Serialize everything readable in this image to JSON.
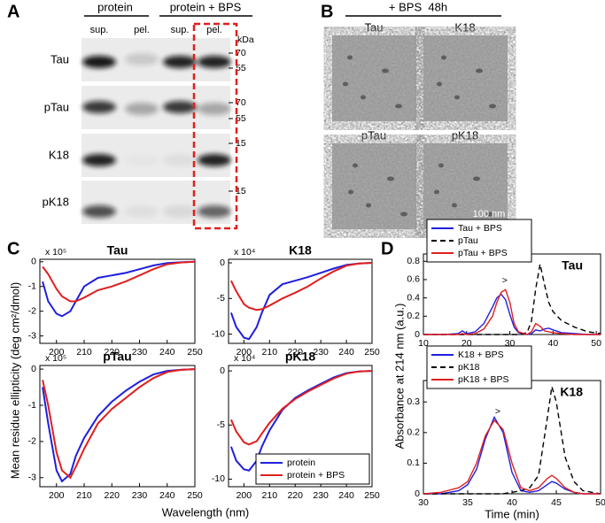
{
  "panel_labels": [
    "A",
    "B",
    "C",
    "D"
  ],
  "gel": {
    "headers": [
      "protein",
      "protein + BPS"
    ],
    "lanes": [
      "sup.",
      "pel.",
      "sup.",
      "pel."
    ],
    "unit": "kDa",
    "rows": [
      {
        "label": "Tau",
        "markers": [
          70,
          55
        ]
      },
      {
        "label": "pTau",
        "markers": [
          70,
          55
        ]
      },
      {
        "label": "K18",
        "markers": [
          15
        ]
      },
      {
        "label": "pK18",
        "markers": [
          15
        ]
      }
    ]
  },
  "tem": {
    "title": "+ BPS  48h",
    "images": [
      "Tau",
      "K18",
      "pTau",
      "pK18"
    ],
    "scale_bar": "100 nm"
  },
  "shared_labels": {
    "cd_ylabel": "Mean residue ellipticity (deg cm²/dmol)",
    "cd_xlabel": "Wavelength (nm)",
    "sec_ylabel": "Absorbance at 214 nm (a.u.)",
    "sec_xlabel": "Time (min)"
  },
  "chart_data": [
    {
      "type": "line",
      "title": "Tau",
      "multiplier": "x 10⁵",
      "x": [
        195,
        197,
        200,
        202,
        205,
        207,
        210,
        215,
        220,
        225,
        230,
        235,
        240,
        245,
        250
      ],
      "xlim": [
        194,
        250
      ],
      "xticks": [
        200,
        210,
        220,
        230,
        240,
        250
      ],
      "ylim": [
        -3.3,
        0.1
      ],
      "yticks": [
        0,
        -1,
        -2,
        -3
      ],
      "series": [
        {
          "color": "#1f1fe0",
          "values": [
            -0.8,
            -1.6,
            -2.1,
            -2.2,
            -2.0,
            -1.6,
            -1.0,
            -0.65,
            -0.55,
            -0.45,
            -0.3,
            -0.15,
            -0.05,
            -0.02,
            0
          ]
        },
        {
          "color": "#e01f1f",
          "values": [
            -0.2,
            -0.5,
            -1.1,
            -1.4,
            -1.6,
            -1.6,
            -1.45,
            -1.15,
            -1.0,
            -0.8,
            -0.55,
            -0.3,
            -0.1,
            -0.03,
            0
          ]
        }
      ]
    },
    {
      "type": "line",
      "title": "K18",
      "multiplier": "x 10⁴",
      "x": [
        195,
        197,
        200,
        202,
        205,
        207,
        210,
        215,
        220,
        225,
        230,
        235,
        240,
        245,
        250
      ],
      "xlim": [
        194,
        250
      ],
      "xticks": [
        200,
        210,
        220,
        230,
        240,
        250
      ],
      "ylim": [
        -11.3,
        0.5
      ],
      "yticks": [
        0,
        -5,
        -10
      ],
      "series": [
        {
          "color": "#1f1fe0",
          "values": [
            -7,
            -9,
            -10.5,
            -10.7,
            -9,
            -7,
            -4.5,
            -3,
            -2.5,
            -2,
            -1.4,
            -0.8,
            -0.3,
            -0.1,
            0
          ]
        },
        {
          "color": "#e01f1f",
          "values": [
            -2.5,
            -4,
            -5.8,
            -6.3,
            -6.6,
            -6.5,
            -6,
            -5,
            -4.2,
            -3.3,
            -2.2,
            -1.2,
            -0.4,
            -0.1,
            0
          ]
        }
      ]
    },
    {
      "type": "line",
      "title": "pTau",
      "multiplier": "x 10⁵",
      "x": [
        195,
        197,
        200,
        202,
        205,
        207,
        210,
        215,
        220,
        225,
        230,
        235,
        240,
        245,
        250
      ],
      "xlim": [
        194,
        250
      ],
      "xticks": [
        200,
        210,
        220,
        230,
        240,
        250
      ],
      "ylim": [
        -3.25,
        0.1
      ],
      "yticks": [
        0,
        -1,
        -2,
        -3
      ],
      "series": [
        {
          "color": "#1f1fe0",
          "values": [
            -0.5,
            -1.5,
            -2.8,
            -3.1,
            -2.9,
            -2.4,
            -1.9,
            -1.3,
            -0.9,
            -0.6,
            -0.35,
            -0.15,
            -0.05,
            -0.02,
            0
          ]
        },
        {
          "color": "#e01f1f",
          "values": [
            -0.3,
            -1.0,
            -2.3,
            -2.8,
            -3.0,
            -2.7,
            -2.2,
            -1.5,
            -1.1,
            -0.8,
            -0.5,
            -0.25,
            -0.08,
            -0.02,
            0
          ]
        }
      ]
    },
    {
      "type": "line",
      "title": "pK18",
      "multiplier": "x 10⁴",
      "x": [
        195,
        197,
        200,
        202,
        205,
        207,
        210,
        215,
        220,
        225,
        230,
        235,
        240,
        245,
        250
      ],
      "xlim": [
        194,
        250
      ],
      "xticks": [
        200,
        210,
        220,
        230,
        240,
        250
      ],
      "ylim": [
        -10.7,
        0.5
      ],
      "yticks": [
        0,
        -5,
        -10
      ],
      "legend": "lower right",
      "series": [
        {
          "name": "protein",
          "color": "#1f1fe0",
          "values": [
            -7,
            -8.3,
            -9.1,
            -9.2,
            -8.3,
            -7,
            -5.5,
            -3.6,
            -2.5,
            -1.8,
            -1.2,
            -0.6,
            -0.2,
            -0.05,
            0
          ]
        },
        {
          "name": "protein + BPS",
          "color": "#e01f1f",
          "values": [
            -4.5,
            -5.6,
            -6.6,
            -6.8,
            -6.5,
            -5.8,
            -4.8,
            -3.5,
            -2.6,
            -1.9,
            -1.3,
            -0.7,
            -0.25,
            -0.05,
            0
          ]
        }
      ]
    },
    {
      "type": "line",
      "title": "Tau",
      "annotations": [
        ">"
      ],
      "x": [
        10,
        15,
        18,
        19,
        20,
        22,
        24,
        26,
        27,
        28,
        29,
        30,
        31,
        32,
        34,
        35,
        36,
        37,
        38,
        39,
        40,
        42,
        45,
        48,
        51
      ],
      "xlim": [
        10,
        51
      ],
      "xticks": [
        10,
        20,
        30,
        40,
        50
      ],
      "ylim": [
        0,
        0.88
      ],
      "yticks": [
        0,
        0.2,
        0.4,
        0.6,
        0.8
      ],
      "legend": "upper left",
      "series": [
        {
          "name": "Tau + BPS",
          "color": "#1f1fe0",
          "values": [
            0,
            0,
            0.01,
            0.04,
            0.01,
            0.03,
            0.12,
            0.3,
            0.4,
            0.44,
            0.38,
            0.22,
            0.08,
            0.02,
            0,
            0.01,
            0.05,
            0.04,
            0.06,
            0.07,
            0.05,
            0.02,
            0.01,
            0,
            0
          ]
        },
        {
          "name": "pTau",
          "color": "#000000",
          "linestyle": "dashed",
          "values": [
            0,
            0,
            0,
            0,
            0,
            0,
            0,
            0,
            0,
            0,
            0,
            0,
            0,
            0,
            0.02,
            0.15,
            0.5,
            0.77,
            0.55,
            0.35,
            0.25,
            0.15,
            0.08,
            0.03,
            0.01
          ]
        },
        {
          "name": "pTau + BPS",
          "color": "#e01f1f",
          "values": [
            0,
            0,
            0,
            0.01,
            0,
            0.01,
            0.06,
            0.2,
            0.35,
            0.46,
            0.49,
            0.35,
            0.12,
            0.03,
            0,
            0.03,
            0.12,
            0.09,
            0.04,
            0.03,
            0.02,
            0.01,
            0,
            0,
            0
          ]
        }
      ]
    },
    {
      "type": "line",
      "title": "K18",
      "annotations": [
        ">"
      ],
      "x": [
        30,
        32,
        34,
        35,
        36,
        37,
        38,
        39,
        40,
        41,
        42,
        43,
        44,
        44.5,
        45,
        46,
        47,
        48,
        50
      ],
      "xlim": [
        30,
        50
      ],
      "xticks": [
        30,
        35,
        40,
        45,
        50
      ],
      "ylim": [
        0,
        0.37
      ],
      "yticks": [
        0,
        0.1,
        0.2,
        0.3
      ],
      "legend": "upper left",
      "series": [
        {
          "name": "K18 + BPS",
          "color": "#1f1fe0",
          "values": [
            0,
            0,
            0.01,
            0.03,
            0.08,
            0.18,
            0.25,
            0.2,
            0.07,
            0.01,
            0.005,
            0.01,
            0.03,
            0.04,
            0.035,
            0.015,
            0.005,
            0,
            0
          ]
        },
        {
          "name": "pK18",
          "color": "#000000",
          "linestyle": "dashed",
          "values": [
            0,
            0,
            0,
            0,
            0,
            0,
            0,
            0,
            0.005,
            0.01,
            0.02,
            0.06,
            0.25,
            0.35,
            0.3,
            0.12,
            0.04,
            0.01,
            0
          ]
        },
        {
          "name": "pK18 + BPS",
          "color": "#e01f1f",
          "values": [
            0,
            0.005,
            0.02,
            0.04,
            0.1,
            0.19,
            0.24,
            0.21,
            0.1,
            0.02,
            0.01,
            0.02,
            0.05,
            0.06,
            0.05,
            0.02,
            0.005,
            0,
            0
          ]
        }
      ]
    }
  ]
}
